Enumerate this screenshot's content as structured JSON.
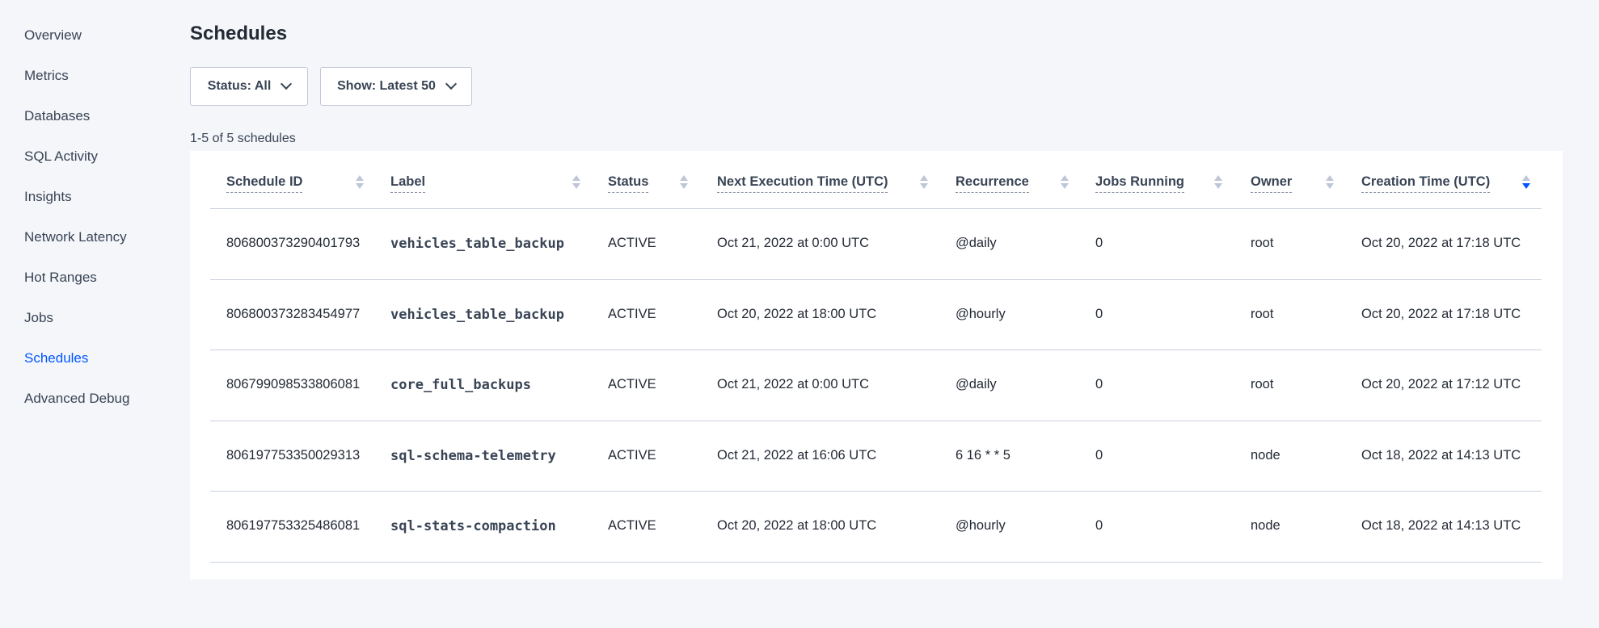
{
  "sidebar": {
    "items": [
      {
        "label": "Overview"
      },
      {
        "label": "Metrics"
      },
      {
        "label": "Databases"
      },
      {
        "label": "SQL Activity"
      },
      {
        "label": "Insights"
      },
      {
        "label": "Network Latency"
      },
      {
        "label": "Hot Ranges"
      },
      {
        "label": "Jobs"
      },
      {
        "label": "Schedules",
        "active": true
      },
      {
        "label": "Advanced Debug"
      }
    ]
  },
  "page": {
    "title": "Schedules",
    "status_filter": "Status: All",
    "show_filter": "Show: Latest 50",
    "count": "1-5 of 5 schedules"
  },
  "colors": {
    "accent": "#0055ff",
    "text": "#394455",
    "background": "#f4f6fa"
  },
  "table": {
    "sorted_column": "Creation Time (UTC)",
    "sort_direction": "descending",
    "headers": [
      "Schedule ID",
      "Label",
      "Status",
      "Next Execution Time (UTC)",
      "Recurrence",
      "Jobs Running",
      "Owner",
      "Creation Time (UTC)"
    ],
    "rows": [
      [
        "806800373290401793",
        "vehicles_table_backup",
        "ACTIVE",
        "Oct 21, 2022 at 0:00 UTC",
        "@daily",
        "0",
        "root",
        "Oct 20, 2022 at 17:18 UTC"
      ],
      [
        "806800373283454977",
        "vehicles_table_backup",
        "ACTIVE",
        "Oct 20, 2022 at 18:00 UTC",
        "@hourly",
        "0",
        "root",
        "Oct 20, 2022 at 17:18 UTC"
      ],
      [
        "806799098533806081",
        "core_full_backups",
        "ACTIVE",
        "Oct 21, 2022 at 0:00 UTC",
        "@daily",
        "0",
        "root",
        "Oct 20, 2022 at 17:12 UTC"
      ],
      [
        "806197753350029313",
        "sql-schema-telemetry",
        "ACTIVE",
        "Oct 21, 2022 at 16:06 UTC",
        "6 16 * * 5",
        "0",
        "node",
        "Oct 18, 2022 at 14:13 UTC"
      ],
      [
        "806197753325486081",
        "sql-stats-compaction",
        "ACTIVE",
        "Oct 20, 2022 at 18:00 UTC",
        "@hourly",
        "0",
        "node",
        "Oct 18, 2022 at 14:13 UTC"
      ]
    ]
  }
}
